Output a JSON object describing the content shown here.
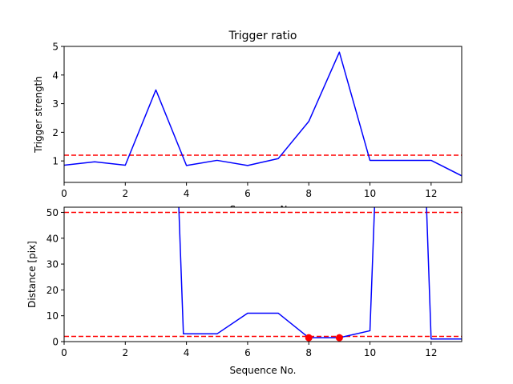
{
  "chart_data": [
    {
      "type": "line",
      "title": "Trigger ratio",
      "xlabel": "Sequence No.",
      "ylabel": "Trigger strength",
      "xlim": [
        0,
        13
      ],
      "ylim": [
        0.25,
        5
      ],
      "xticks": [
        0,
        2,
        4,
        6,
        8,
        10,
        12
      ],
      "yticks": [
        1,
        2,
        3,
        4,
        5
      ],
      "series": [
        {
          "color": "#0000ff",
          "x": [
            0,
            1,
            2,
            3,
            4,
            5,
            6,
            7,
            8,
            9,
            10,
            11,
            12,
            13
          ],
          "y": [
            0.85,
            0.97,
            0.85,
            3.48,
            0.84,
            1.02,
            0.84,
            1.08,
            2.38,
            4.8,
            1.02,
            1.02,
            1.02,
            0.48
          ]
        }
      ],
      "hlines": [
        {
          "y": 1.2,
          "color": "#ff0000",
          "style": "dashed"
        }
      ]
    },
    {
      "type": "line",
      "xlabel": "Sequence No.",
      "ylabel": "Distance [pix]",
      "xlim": [
        0,
        13
      ],
      "ylim": [
        0,
        52
      ],
      "xticks": [
        0,
        2,
        4,
        6,
        8,
        10,
        12
      ],
      "yticks": [
        0,
        10,
        20,
        30,
        40,
        50
      ],
      "series": [
        {
          "color": "#0000ff",
          "x": [
            3.75,
            3.9,
            5,
            6,
            7,
            8,
            9,
            10,
            10.15
          ],
          "y": [
            52,
            3,
            3,
            11,
            11,
            1.5,
            1.5,
            4.2,
            52
          ]
        },
        {
          "color": "#0000ff",
          "x": [
            11.85,
            12,
            13
          ],
          "y": [
            52,
            1,
            1
          ]
        }
      ],
      "markers": [
        {
          "x": 8,
          "y": 1.5,
          "color": "#ff0000"
        },
        {
          "x": 9,
          "y": 1.5,
          "color": "#ff0000"
        }
      ],
      "hlines": [
        {
          "y": 50,
          "color": "#ff0000",
          "style": "dashed"
        },
        {
          "y": 2,
          "color": "#ff0000",
          "style": "dashed"
        }
      ]
    }
  ]
}
